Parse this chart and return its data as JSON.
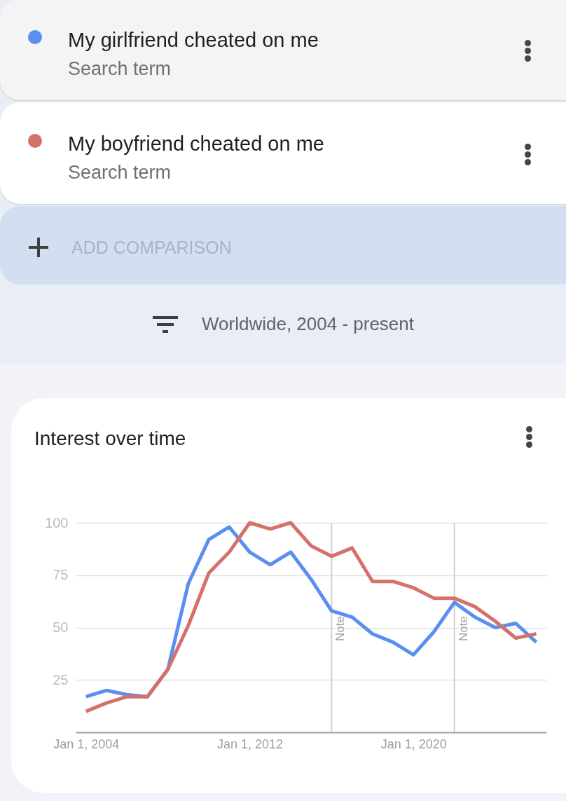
{
  "chart_data": {
    "type": "line",
    "title": "Interest over time",
    "subtitle": "Worldwide, 2004 - present",
    "annotations": [
      "Search term",
      "Search term",
      "ADD COMPARISON"
    ],
    "x": [
      "2004",
      "2005",
      "2006",
      "2007",
      "2008",
      "2009",
      "2010",
      "2011",
      "2012",
      "2013",
      "2014",
      "2015",
      "2016",
      "2017",
      "2018",
      "2019",
      "2020",
      "2021",
      "2022",
      "2023",
      "2024",
      "2025",
      "2026"
    ],
    "series": [
      {
        "name": "My girlfriend cheated on me",
        "color": "#5a8ef0",
        "values": [
          17,
          20,
          18,
          17,
          30,
          71,
          92,
          98,
          86,
          80,
          86,
          73,
          58,
          55,
          47,
          43,
          37,
          48,
          62,
          55,
          50,
          52,
          43
        ]
      },
      {
        "name": "My boyfriend cheated on me",
        "color": "#d5706a",
        "values": [
          10,
          14,
          17,
          17,
          30,
          51,
          76,
          86,
          100,
          97,
          100,
          89,
          84,
          88,
          72,
          72,
          69,
          64,
          64,
          60,
          53,
          45,
          47
        ]
      }
    ],
    "xlim": [
      "2003-07",
      "2026-07"
    ],
    "xticks": [
      {
        "value": "2004-01-01",
        "label": "Jan 1, 2004"
      },
      {
        "value": "2012-01-01",
        "label": "Jan 1, 2012"
      },
      {
        "value": "2020-01-01",
        "label": "Jan 1, 2020"
      }
    ],
    "ylim": [
      0,
      100
    ],
    "yticks": [
      25,
      50,
      75,
      100
    ],
    "grid": "y",
    "legend": "top",
    "line_style": "solid",
    "ref_lines": [
      {
        "axis": "x",
        "value": "2016-01-01",
        "label": "Note",
        "color": "#d0d0d0"
      },
      {
        "axis": "x",
        "value": "2022-01-01",
        "label": "Note",
        "color": "#d0d0d0"
      }
    ]
  }
}
